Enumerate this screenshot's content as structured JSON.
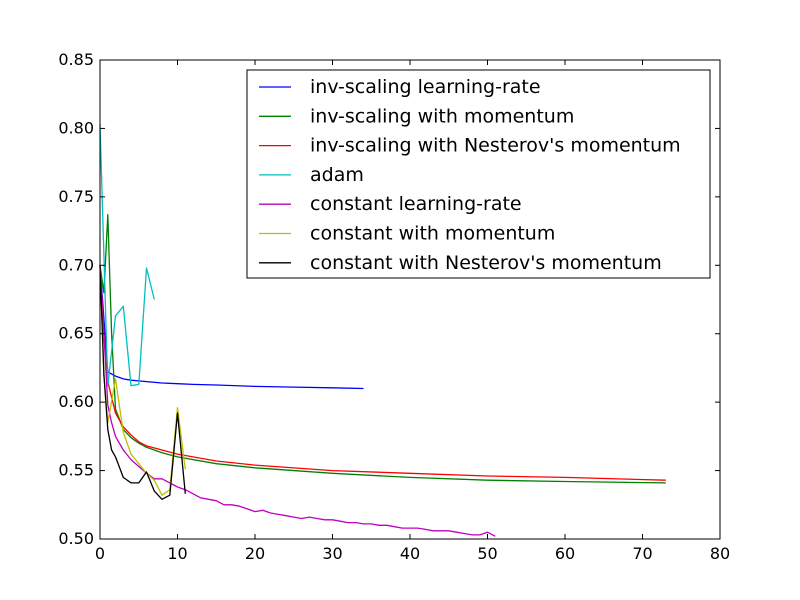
{
  "chart_data": {
    "type": "line",
    "title": "",
    "xlabel": "",
    "ylabel": "",
    "xlim": [
      0,
      80
    ],
    "ylim": [
      0.5,
      0.85
    ],
    "xticks": [
      0,
      10,
      20,
      30,
      40,
      50,
      60,
      70,
      80
    ],
    "yticks": [
      0.5,
      0.55,
      0.6,
      0.65,
      0.7,
      0.75,
      0.8,
      0.85
    ],
    "xtick_labels": [
      "0",
      "10",
      "20",
      "30",
      "40",
      "50",
      "60",
      "70",
      "80"
    ],
    "ytick_labels": [
      "0.50",
      "0.55",
      "0.60",
      "0.65",
      "0.70",
      "0.75",
      "0.80",
      "0.85"
    ],
    "grid": false,
    "legend_position": "upper-right",
    "series": [
      {
        "name": "inv-scaling learning-rate",
        "color": "#0000ff",
        "x": [
          0,
          1,
          2,
          3,
          4,
          5,
          6,
          8,
          10,
          12,
          15,
          20,
          25,
          30,
          34
        ],
        "y": [
          0.7,
          0.622,
          0.619,
          0.617,
          0.616,
          0.6155,
          0.615,
          0.614,
          0.6135,
          0.613,
          0.6125,
          0.6115,
          0.611,
          0.6105,
          0.61
        ]
      },
      {
        "name": "inv-scaling with momentum",
        "color": "#008000",
        "x": [
          0,
          0.5,
          1,
          1.5,
          2,
          3,
          4,
          5,
          6,
          8,
          10,
          15,
          20,
          30,
          40,
          50,
          60,
          73
        ],
        "y": [
          0.7,
          0.68,
          0.737,
          0.65,
          0.595,
          0.58,
          0.574,
          0.57,
          0.567,
          0.563,
          0.56,
          0.555,
          0.552,
          0.548,
          0.545,
          0.543,
          0.542,
          0.541
        ]
      },
      {
        "name": "inv-scaling with Nesterov's momentum",
        "color": "#ff0000",
        "x": [
          0,
          0.5,
          1,
          2,
          3,
          4,
          5,
          6,
          8,
          10,
          15,
          20,
          30,
          40,
          50,
          60,
          73
        ],
        "y": [
          0.7,
          0.65,
          0.615,
          0.592,
          0.582,
          0.576,
          0.571,
          0.568,
          0.565,
          0.562,
          0.557,
          0.554,
          0.55,
          0.548,
          0.546,
          0.545,
          0.543
        ]
      },
      {
        "name": "adam",
        "color": "#00bfbf",
        "x": [
          0,
          1,
          2,
          3,
          4,
          5,
          6,
          7
        ],
        "y": [
          0.803,
          0.612,
          0.663,
          0.67,
          0.612,
          0.613,
          0.698,
          0.675
        ]
      },
      {
        "name": "constant learning-rate",
        "color": "#bf00bf",
        "x": [
          0,
          0.5,
          1,
          1.5,
          2,
          3,
          4,
          5,
          6,
          7,
          8,
          9,
          10,
          11,
          12,
          13,
          14,
          15,
          16,
          17,
          18,
          19,
          20,
          21,
          22,
          23,
          24,
          25,
          26,
          27,
          28,
          29,
          30,
          31,
          32,
          33,
          34,
          35,
          36,
          37,
          38,
          39,
          40,
          41,
          42,
          43,
          44,
          45,
          46,
          47,
          48,
          49,
          50,
          51
        ],
        "y": [
          0.7,
          0.65,
          0.598,
          0.585,
          0.575,
          0.565,
          0.558,
          0.553,
          0.548,
          0.544,
          0.544,
          0.541,
          0.538,
          0.536,
          0.533,
          0.53,
          0.529,
          0.528,
          0.525,
          0.525,
          0.524,
          0.522,
          0.52,
          0.521,
          0.519,
          0.518,
          0.517,
          0.516,
          0.515,
          0.516,
          0.515,
          0.514,
          0.514,
          0.513,
          0.512,
          0.512,
          0.511,
          0.511,
          0.51,
          0.51,
          0.509,
          0.508,
          0.508,
          0.508,
          0.507,
          0.506,
          0.506,
          0.506,
          0.505,
          0.504,
          0.503,
          0.503,
          0.505,
          0.502
        ]
      },
      {
        "name": "constant with momentum",
        "color": "#bfbf00",
        "x": [
          0,
          0.5,
          1,
          2,
          3,
          4,
          5,
          6,
          7,
          8,
          9,
          10,
          11
        ],
        "y": [
          0.7,
          0.62,
          0.585,
          0.617,
          0.578,
          0.562,
          0.555,
          0.548,
          0.543,
          0.532,
          0.536,
          0.596,
          0.551
        ]
      },
      {
        "name": "constant with Nesterov's momentum",
        "color": "#000000",
        "x": [
          0,
          0.5,
          1,
          1.5,
          2,
          3,
          4,
          5,
          6,
          7,
          8,
          9,
          10,
          11
        ],
        "y": [
          0.7,
          0.62,
          0.58,
          0.565,
          0.56,
          0.545,
          0.541,
          0.541,
          0.549,
          0.535,
          0.529,
          0.532,
          0.592,
          0.533
        ]
      }
    ]
  }
}
